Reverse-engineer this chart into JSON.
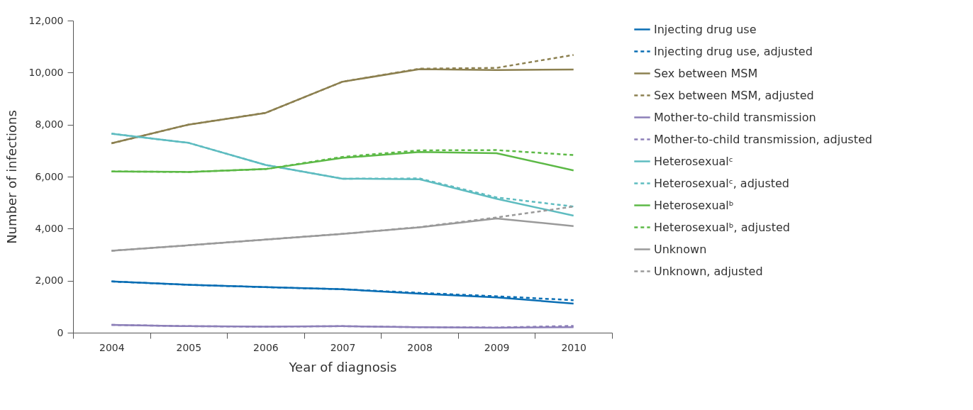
{
  "chart_data": {
    "type": "line",
    "xlabel": "Year of diagnosis",
    "ylabel": "Number of infections",
    "categories": [
      "2004",
      "2005",
      "2006",
      "2007",
      "2008",
      "2009",
      "2010"
    ],
    "ylim": [
      0,
      12000
    ],
    "yticks": [
      0,
      {
        "value": 2000,
        "label": "2,000"
      },
      {
        "value": 4000,
        "label": "4,000"
      },
      {
        "value": 6000,
        "label": "6,000"
      },
      {
        "value": 8000,
        "label": "8,000"
      },
      {
        "value": 10000,
        "label": "10,000"
      },
      {
        "value": 12000,
        "label": "12,000"
      }
    ],
    "grid": false,
    "legend": "right",
    "marker": "none",
    "series": [
      {
        "name": "Injecting drug use",
        "color": "#0a6eb4",
        "line_style": "solid",
        "values": [
          1970,
          1840,
          1750,
          1670,
          1500,
          1360,
          1120
        ]
      },
      {
        "name": "Injecting drug use, adjusted",
        "color": "#0a6eb4",
        "line_style": "dashed",
        "values": [
          1970,
          1840,
          1750,
          1670,
          1530,
          1400,
          1250
        ]
      },
      {
        "name": "Sex between MSM",
        "color": "#8c8050",
        "line_style": "solid",
        "values": [
          7280,
          8000,
          8450,
          9650,
          10130,
          10100,
          10120
        ]
      },
      {
        "name": "Sex between MSM, adjusted",
        "color": "#8c8050",
        "line_style": "dashed",
        "values": [
          7280,
          8000,
          8450,
          9650,
          10150,
          10180,
          10680
        ]
      },
      {
        "name": "Mother-to-child transmission",
        "color": "#8c7fb8",
        "line_style": "solid",
        "values": [
          300,
          250,
          230,
          250,
          210,
          190,
          210
        ]
      },
      {
        "name": "Mother-to-child transmission, adjusted",
        "color": "#8c7fb8",
        "line_style": "dashed",
        "values": [
          300,
          250,
          230,
          250,
          210,
          200,
          260
        ]
      },
      {
        "name": "Heterosexualᶜ",
        "color": "#5ebcc0",
        "line_style": "solid",
        "values": [
          7650,
          7300,
          6450,
          5920,
          5900,
          5150,
          4500
        ]
      },
      {
        "name": "Heterosexualᶜ, adjusted",
        "color": "#5ebcc0",
        "line_style": "dashed",
        "values": [
          7650,
          7300,
          6450,
          5920,
          5930,
          5200,
          4850
        ]
      },
      {
        "name": "Heterosexualᵇ",
        "color": "#5cb946",
        "line_style": "solid",
        "values": [
          6200,
          6180,
          6290,
          6720,
          6950,
          6900,
          6240
        ]
      },
      {
        "name": "Heterosexualᵇ, adjusted",
        "color": "#5cb946",
        "line_style": "dashed",
        "values": [
          6200,
          6180,
          6290,
          6760,
          7010,
          7020,
          6830
        ]
      },
      {
        "name": "Unknown",
        "color": "#9a9a9a",
        "line_style": "solid",
        "values": [
          3150,
          3360,
          3580,
          3800,
          4050,
          4390,
          4100
        ]
      },
      {
        "name": "Unknown, adjusted",
        "color": "#9a9a9a",
        "line_style": "dashed",
        "values": [
          3150,
          3360,
          3580,
          3800,
          4060,
          4430,
          4850
        ]
      }
    ]
  }
}
